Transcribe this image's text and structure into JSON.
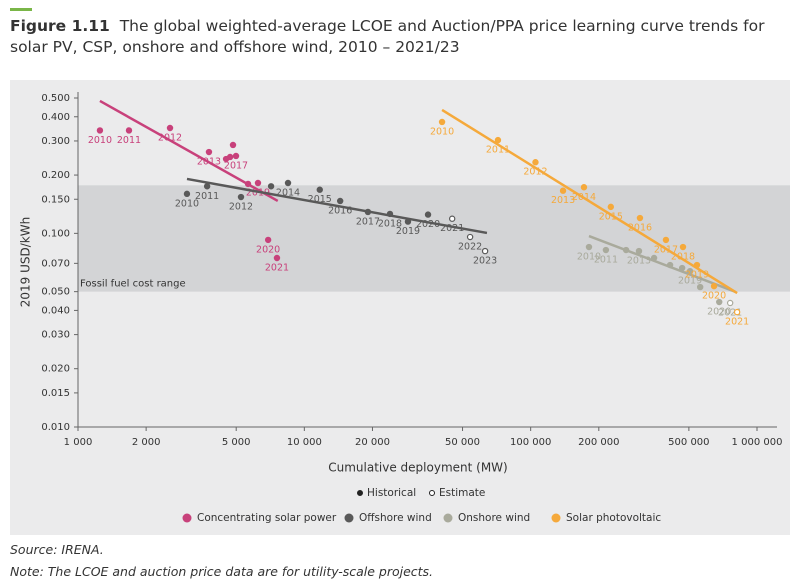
{
  "figure_label": "Figure 1.11",
  "title": "The global weighted-average LCOE and Auction/PPA price learning curve trends for solar PV, CSP, onshore and offshore wind, 2010 – 2021/23",
  "source": "Source: IRENA.",
  "note": "Note: The LCOE and auction price data are for utility-scale projects.",
  "chart_data": {
    "type": "scatter",
    "x_label": "Cumulative deployment (MW)",
    "y_label": "2019 USD/kWh",
    "log_x": true,
    "log_y": true,
    "xlim": [
      1000,
      1000000
    ],
    "ylim": [
      0.01,
      0.5
    ],
    "xticks": [
      {
        "value": 1000,
        "label": "1 000"
      },
      {
        "value": 2000,
        "label": "2 000"
      },
      {
        "value": 5000,
        "label": "5 000"
      },
      {
        "value": 10000,
        "label": "10 000"
      },
      {
        "value": 20000,
        "label": "20 000"
      },
      {
        "value": 50000,
        "label": "50 000"
      },
      {
        "value": 100000,
        "label": "100 000"
      },
      {
        "value": 200000,
        "label": "200 000"
      },
      {
        "value": 500000,
        "label": "500 000"
      },
      {
        "value": 1000000,
        "label": "1 000 000"
      }
    ],
    "yticks": [
      {
        "value": 0.5,
        "label": "0.500"
      },
      {
        "value": 0.4,
        "label": "0.400"
      },
      {
        "value": 0.3,
        "label": "0.300"
      },
      {
        "value": 0.2,
        "label": "0.200"
      },
      {
        "value": 0.15,
        "label": "0.150"
      },
      {
        "value": 0.1,
        "label": "0.100"
      },
      {
        "value": 0.07,
        "label": "0.070"
      },
      {
        "value": 0.05,
        "label": "0.050"
      },
      {
        "value": 0.04,
        "label": "0.040"
      },
      {
        "value": 0.03,
        "label": "0.030"
      },
      {
        "value": 0.02,
        "label": "0.020"
      },
      {
        "value": 0.015,
        "label": "0.015"
      },
      {
        "value": 0.01,
        "label": "0.010"
      }
    ],
    "band": {
      "label": "Fossil fuel cost range",
      "range": [
        0.05,
        0.177
      ],
      "color": "#d3d4d6"
    },
    "marker_legend": [
      "Historical",
      "Estimate"
    ],
    "series": [
      {
        "name": "Concentrating solar power",
        "color": "#c8417b",
        "x": [
          1250,
          1680,
          2550,
          3790,
          4840,
          4510,
          4700,
          4990,
          5640,
          6240,
          6920,
          7570
        ],
        "values": [
          0.34,
          0.34,
          0.35,
          0.263,
          0.286,
          0.242,
          0.248,
          0.251,
          0.18,
          0.182,
          0.0925,
          0.0746
        ],
        "labels": [
          "2010",
          "2011",
          "2012",
          "2013",
          null,
          null,
          null,
          "2017",
          null,
          "2019",
          "2020",
          "2021"
        ],
        "estimate": [
          false,
          false,
          false,
          false,
          false,
          false,
          false,
          false,
          false,
          false,
          false,
          false
        ],
        "trend": {
          "x": [
            1250,
            7630
          ],
          "values": [
            0.483,
            0.147
          ]
        }
      },
      {
        "name": "Offshore wind",
        "color": "#595959",
        "x": [
          3030,
          3720,
          5250,
          7130,
          8470,
          11700,
          14400,
          19100,
          23900,
          28700,
          35200,
          45000,
          54000,
          62900
        ],
        "values": [
          0.16,
          0.175,
          0.154,
          0.175,
          0.182,
          0.168,
          0.147,
          0.129,
          0.126,
          0.115,
          0.125,
          0.119,
          0.0957,
          0.081
        ],
        "labels": [
          "2010",
          "2011",
          "2012",
          null,
          "2014",
          "2015",
          "2016",
          "2017",
          "2018",
          "2019",
          "2020",
          "2021",
          "2022",
          "2023"
        ],
        "estimate": [
          false,
          false,
          false,
          false,
          false,
          false,
          false,
          false,
          false,
          false,
          false,
          true,
          true,
          true
        ],
        "trend": {
          "x": [
            3030,
            64100
          ],
          "values": [
            0.191,
            0.1005
          ]
        }
      },
      {
        "name": "Onshore wind",
        "color": "#a9aa9c",
        "x": [
          181000,
          215000,
          264000,
          301000,
          351000,
          413000,
          467000,
          506000,
          561000,
          681000,
          761000
        ],
        "values": [
          0.085,
          0.082,
          0.082,
          0.081,
          0.0746,
          0.0686,
          0.0662,
          0.0638,
          0.0528,
          0.0442,
          0.0437
        ],
        "labels": [
          "2010",
          "2011",
          null,
          "2013",
          null,
          null,
          null,
          "2019",
          null,
          "2020",
          "2021"
        ],
        "estimate": [
          false,
          false,
          false,
          false,
          false,
          false,
          false,
          false,
          false,
          false,
          true
        ],
        "trend": {
          "x": [
            181000,
            800000
          ],
          "values": [
            0.0968,
            0.05
          ]
        }
      },
      {
        "name": "Solar photovoltaic",
        "color": "#f5a93b",
        "x": [
          40600,
          71700,
          105000,
          139000,
          172000,
          226000,
          304000,
          396000,
          471000,
          543000,
          646000,
          817000
        ],
        "values": [
          0.376,
          0.303,
          0.233,
          0.166,
          0.173,
          0.137,
          0.12,
          0.0925,
          0.085,
          0.0686,
          0.0534,
          0.0392
        ],
        "labels": [
          "2010",
          "2011",
          "2012",
          "2013",
          "2014",
          "2015",
          "2016",
          "2017",
          "2018",
          "2019",
          "2020",
          "2021"
        ],
        "estimate": [
          false,
          false,
          false,
          false,
          false,
          false,
          false,
          false,
          false,
          false,
          false,
          true
        ],
        "trend": {
          "x": [
            40600,
            817000
          ],
          "values": [
            0.434,
            0.0492
          ]
        }
      }
    ]
  }
}
